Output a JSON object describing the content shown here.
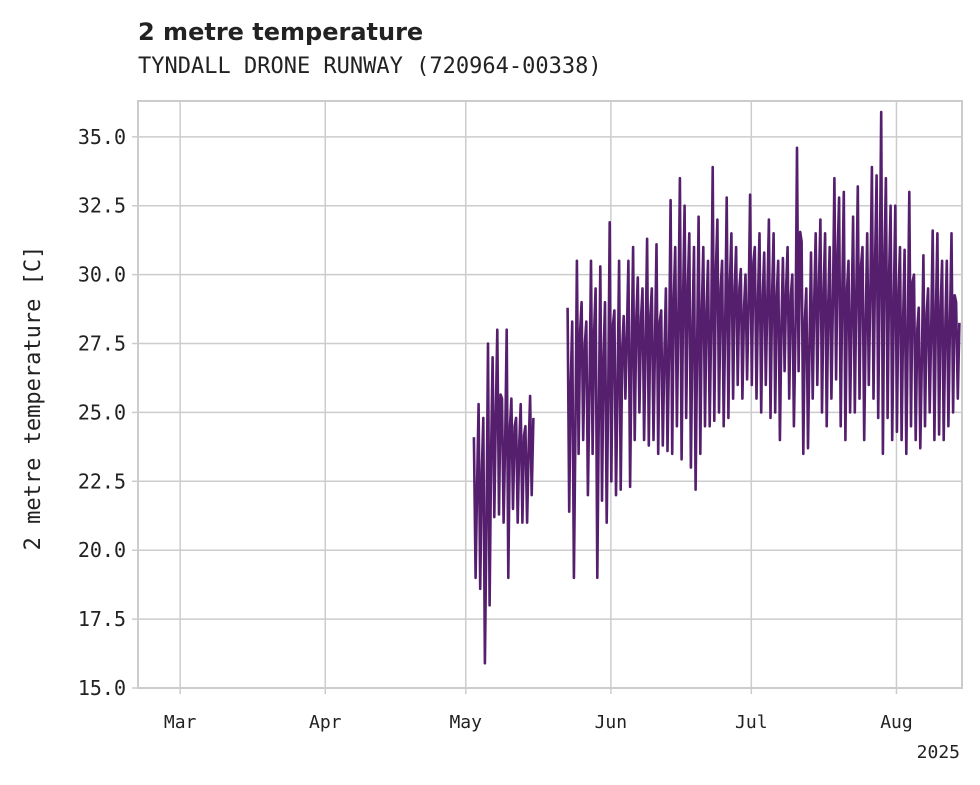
{
  "chart_data": {
    "type": "line",
    "title": "2 metre temperature",
    "subtitle": "TYNDALL DRONE RUNWAY (720964-00338)",
    "ylabel": "2 metre temperature [C]",
    "xlabel": "",
    "ylim": [
      15.0,
      36.3
    ],
    "xlim": [
      "2025-02-20",
      "2025-08-15"
    ],
    "y_ticks": [
      "15.0",
      "17.5",
      "20.0",
      "22.5",
      "25.0",
      "27.5",
      "30.0",
      "32.5",
      "35.0"
    ],
    "x_ticks": [
      {
        "date": "2025-03-01",
        "label": "Mar"
      },
      {
        "date": "2025-04-01",
        "label": "Apr"
      },
      {
        "date": "2025-05-01",
        "label": "May"
      },
      {
        "date": "2025-06-01",
        "label": "Jun"
      },
      {
        "date": "2025-07-01",
        "label": "Jul"
      },
      {
        "date": "2025-08-01",
        "label": "Aug"
      }
    ],
    "x_offset_label": "2025",
    "grid": true,
    "series": [
      {
        "color": "#561f6e",
        "x": [
          "2025-05-03",
          "2025-05-04",
          "2025-05-05",
          "2025-05-06",
          "2025-05-07",
          "2025-05-08",
          "2025-05-09",
          "2025-05-10",
          "2025-05-11",
          "2025-05-12",
          "2025-05-13",
          "2025-05-14",
          "2025-05-15",
          "2025-05-23",
          "2025-05-24",
          "2025-05-25",
          "2025-05-26",
          "2025-05-27",
          "2025-05-28",
          "2025-05-29",
          "2025-05-30",
          "2025-05-31",
          "2025-06-01",
          "2025-06-02",
          "2025-06-03",
          "2025-06-04",
          "2025-06-05",
          "2025-06-06",
          "2025-06-07",
          "2025-06-08",
          "2025-06-09",
          "2025-06-10",
          "2025-06-11",
          "2025-06-12",
          "2025-06-13",
          "2025-06-14",
          "2025-06-15",
          "2025-06-16",
          "2025-06-17",
          "2025-06-18",
          "2025-06-19",
          "2025-06-20",
          "2025-06-21",
          "2025-06-22",
          "2025-06-23",
          "2025-06-24",
          "2025-06-25",
          "2025-06-26",
          "2025-06-27",
          "2025-06-28",
          "2025-06-29",
          "2025-06-30",
          "2025-07-01",
          "2025-07-02",
          "2025-07-03",
          "2025-07-04",
          "2025-07-05",
          "2025-07-06",
          "2025-07-07",
          "2025-07-08",
          "2025-07-09",
          "2025-07-10",
          "2025-07-11",
          "2025-07-12",
          "2025-07-13",
          "2025-07-14",
          "2025-07-15",
          "2025-07-16",
          "2025-07-17",
          "2025-07-18",
          "2025-07-19",
          "2025-07-20",
          "2025-07-21",
          "2025-07-22",
          "2025-07-23",
          "2025-07-24",
          "2025-07-25",
          "2025-07-26",
          "2025-07-27",
          "2025-07-28",
          "2025-07-29",
          "2025-07-30",
          "2025-07-31",
          "2025-08-01",
          "2025-08-02",
          "2025-08-03",
          "2025-08-04",
          "2025-08-05",
          "2025-08-06",
          "2025-08-07",
          "2025-08-08",
          "2025-08-09",
          "2025-08-10",
          "2025-08-11",
          "2025-08-12",
          "2025-08-13",
          "2025-08-14"
        ],
        "y_min": [
          19.0,
          18.6,
          15.9,
          18.0,
          21.2,
          21.3,
          21.0,
          19.0,
          21.5,
          21.0,
          21.0,
          21.0,
          22.0,
          21.4,
          19.0,
          23.5,
          24.0,
          22.0,
          23.5,
          19.0,
          21.8,
          21.0,
          22.5,
          22.0,
          22.2,
          25.5,
          22.3,
          24.0,
          25.0,
          24.0,
          23.8,
          24.0,
          23.5,
          23.8,
          23.6,
          23.5,
          24.5,
          23.3,
          24.8,
          23.0,
          22.2,
          23.5,
          24.5,
          24.5,
          24.7,
          25.0,
          24.5,
          24.8,
          25.5,
          26.0,
          25.5,
          26.2,
          26.0,
          25.5,
          25.0,
          26.0,
          24.8,
          25.0,
          24.0,
          26.5,
          25.5,
          24.5,
          26.5,
          23.5,
          23.7,
          25.5,
          26.0,
          25.0,
          24.5,
          25.5,
          26.2,
          24.5,
          24.0,
          25.0,
          25.0,
          25.5,
          24.0,
          26.0,
          25.5,
          24.8,
          23.5,
          24.8,
          24.0,
          24.3,
          24.0,
          23.5,
          24.5,
          24.0,
          23.7,
          24.5,
          25.0,
          24.0,
          24.2,
          24.0,
          24.5,
          25.0,
          25.5
        ],
        "y_max": [
          24.1,
          25.3,
          24.8,
          27.5,
          27.0,
          28.0,
          25.5,
          28.0,
          25.5,
          24.8,
          25.3,
          24.5,
          25.6,
          28.8,
          28.3,
          30.5,
          29.0,
          28.3,
          30.5,
          29.5,
          30.3,
          29.0,
          31.9,
          28.7,
          30.5,
          28.5,
          30.5,
          31.0,
          29.9,
          29.5,
          31.3,
          29.5,
          31.1,
          28.7,
          29.5,
          32.7,
          31.0,
          33.5,
          32.5,
          31.5,
          31.0,
          32.1,
          31.0,
          30.5,
          33.9,
          32.0,
          30.5,
          32.8,
          31.5,
          31.0,
          30.2,
          30.0,
          32.9,
          31.0,
          31.5,
          30.8,
          32.0,
          31.5,
          30.5,
          30.6,
          31.0,
          30.0,
          34.6,
          31.2,
          29.5,
          30.8,
          31.5,
          32.0,
          31.5,
          31.0,
          33.5,
          32.8,
          33.0,
          30.5,
          32.1,
          33.2,
          31.0,
          31.5,
          33.9,
          33.6,
          35.9,
          33.5,
          32.5,
          32.5,
          31.0,
          30.9,
          33.0,
          30.0,
          28.8,
          30.7,
          29.5,
          31.6,
          31.5,
          30.5,
          30.5,
          31.5,
          29.0
        ]
      }
    ]
  }
}
